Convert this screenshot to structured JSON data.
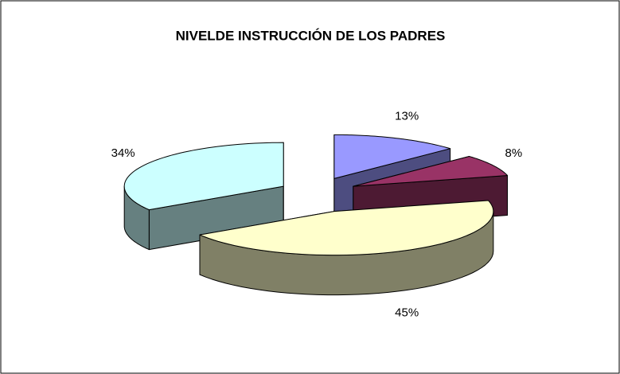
{
  "chart_data": {
    "type": "pie",
    "title": "NIVELDE INSTRUCCIÓN DE LOS PADRES",
    "values": [
      13,
      8,
      45,
      34
    ],
    "value_labels": [
      "13%",
      "8%",
      "45%",
      "34%"
    ],
    "colors": [
      "#9999ff",
      "#993366",
      "#ffffcc",
      "#ccffff"
    ],
    "exploded": true,
    "three_d": true
  }
}
